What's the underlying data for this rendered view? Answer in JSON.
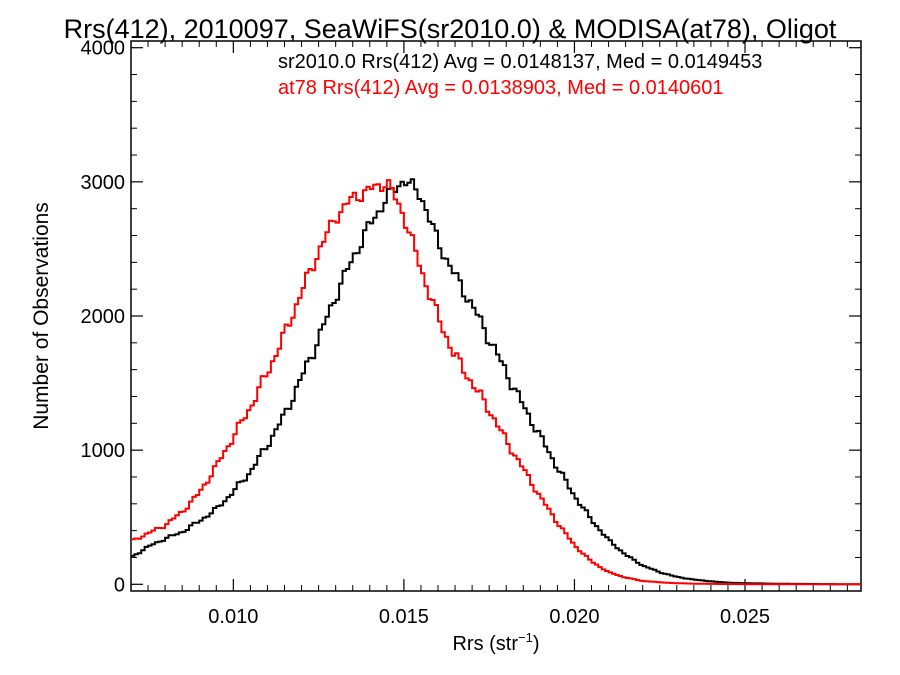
{
  "chart_data": {
    "type": "line",
    "title": "Rrs(412), 2010097, SeaWiFS(sr2010.0) & MODISA(at78), Oligot",
    "xlabel": "Rrs (str",
    "xlabel_sup": "−1",
    "xlabel_end": ")",
    "ylabel": "Number of Observations",
    "xlim": [
      0.007,
      0.0284
    ],
    "ylim": [
      -50,
      4050
    ],
    "xticks": [
      0.01,
      0.015,
      0.02,
      0.025
    ],
    "xtick_labels": [
      "0.010",
      "0.015",
      "0.020",
      "0.025"
    ],
    "yticks": [
      0,
      1000,
      2000,
      3000,
      4000
    ],
    "ytick_labels": [
      "0",
      "1000",
      "2000",
      "3000",
      "4000"
    ],
    "grid": false,
    "annotations": [
      {
        "text": "sr2010.0 Rrs(412) Avg = 0.0148137, Med = 0.0149453",
        "color": "#000000"
      },
      {
        "text": "at78 Rrs(412) Avg = 0.0138903, Med = 0.0140601",
        "color": "#ff0000"
      }
    ],
    "series": [
      {
        "color": "#000000",
        "x": [
          0.007,
          0.0075,
          0.008,
          0.0085,
          0.009,
          0.0095,
          0.01,
          0.0105,
          0.011,
          0.0115,
          0.012,
          0.0125,
          0.013,
          0.0135,
          0.014,
          0.0145,
          0.015,
          0.0155,
          0.016,
          0.0165,
          0.017,
          0.0175,
          0.018,
          0.0185,
          0.019,
          0.0195,
          0.02,
          0.0205,
          0.021,
          0.0215,
          0.022,
          0.0225,
          0.023,
          0.0235,
          0.024,
          0.0245,
          0.025,
          0.026,
          0.027,
          0.0284
        ],
        "y": [
          200,
          280,
          340,
          390,
          470,
          560,
          690,
          840,
          1040,
          1260,
          1540,
          1830,
          2150,
          2430,
          2680,
          2880,
          3020,
          2900,
          2550,
          2300,
          2080,
          1830,
          1580,
          1330,
          1100,
          870,
          660,
          480,
          330,
          220,
          140,
          90,
          55,
          35,
          22,
          12,
          8,
          4,
          2,
          0
        ]
      },
      {
        "color": "#ff0000",
        "x": [
          0.007,
          0.0075,
          0.008,
          0.0085,
          0.009,
          0.0095,
          0.01,
          0.0105,
          0.011,
          0.0115,
          0.012,
          0.0125,
          0.013,
          0.0135,
          0.014,
          0.0145,
          0.015,
          0.0155,
          0.016,
          0.0165,
          0.017,
          0.0175,
          0.018,
          0.0185,
          0.019,
          0.0195,
          0.02,
          0.0205,
          0.021,
          0.0215,
          0.022,
          0.0225,
          0.023,
          0.0235,
          0.024,
          0.025,
          0.026,
          0.027,
          0.0284
        ],
        "y": [
          320,
          380,
          440,
          540,
          680,
          880,
          1100,
          1320,
          1580,
          1860,
          2180,
          2480,
          2740,
          2880,
          2940,
          3000,
          2750,
          2350,
          1990,
          1700,
          1500,
          1300,
          1070,
          860,
          650,
          460,
          290,
          170,
          90,
          50,
          25,
          15,
          8,
          5,
          3,
          1,
          0,
          0,
          0
        ]
      }
    ]
  }
}
